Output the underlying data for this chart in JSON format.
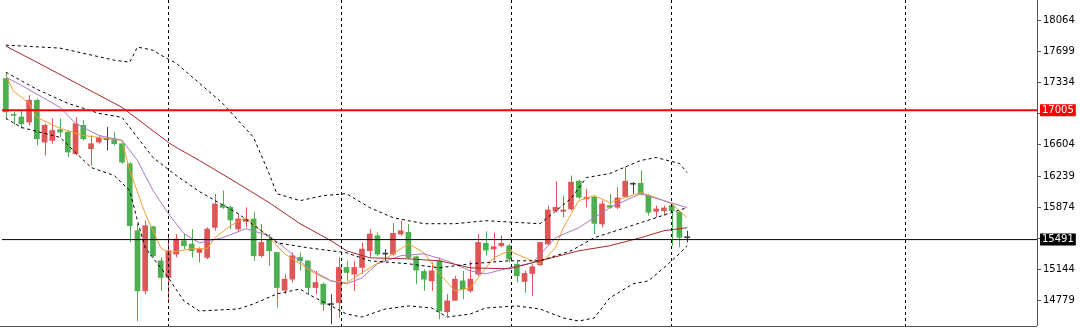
{
  "chart_data": {
    "type": "candlestick",
    "categories": [
      null,
      null,
      null,
      null,
      null,
      null,
      null,
      null,
      null,
      null,
      null,
      null,
      null,
      null,
      null,
      null,
      null,
      null,
      null,
      null,
      null,
      null,
      null,
      null,
      null,
      null,
      null,
      null,
      null,
      null,
      null,
      null,
      null,
      null,
      null,
      null,
      null,
      null,
      null,
      null,
      null,
      null,
      null,
      null,
      null,
      null,
      null,
      null,
      null,
      null,
      null,
      null,
      null,
      null,
      null,
      null,
      null,
      null,
      null,
      null,
      null,
      null,
      null,
      null,
      null,
      null,
      null,
      null,
      null,
      null,
      null,
      null,
      null,
      null,
      null,
      null,
      null,
      null,
      null,
      null,
      null,
      null,
      null,
      null,
      null,
      null,
      null,
      null,
      null
    ],
    "ohlc": [
      [
        17376,
        17435,
        16906,
        16985
      ],
      [
        16957,
        16985,
        16828,
        16945
      ],
      [
        16926,
        17004,
        16789,
        16848
      ],
      [
        16867,
        17180,
        16828,
        17122
      ],
      [
        17122,
        17141,
        16593,
        16671
      ],
      [
        16632,
        16848,
        16476,
        16828
      ],
      [
        16652,
        16906,
        16613,
        16769
      ],
      [
        16777,
        16906,
        16691,
        16750
      ],
      [
        16750,
        16769,
        16456,
        16515
      ],
      [
        16495,
        16926,
        16476,
        16848
      ],
      [
        16828,
        16887,
        16652,
        16671
      ],
      [
        16554,
        16711,
        16358,
        16613
      ],
      [
        16632,
        16711,
        16613,
        16683
      ],
      [
        16671,
        16808,
        16534,
        16664
      ],
      [
        16671,
        16750,
        16593,
        16613
      ],
      [
        16613,
        16652,
        16378,
        16397
      ],
      [
        16378,
        16397,
        15458,
        15654
      ],
      [
        15595,
        15674,
        14539,
        14891
      ],
      [
        14891,
        15713,
        14852,
        15654
      ],
      [
        15642,
        15654,
        15282,
        15302
      ],
      [
        15243,
        15282,
        14891,
        15048
      ],
      [
        15048,
        15556,
        14754,
        15361
      ],
      [
        15321,
        15556,
        15282,
        15498
      ],
      [
        15478,
        15564,
        15380,
        15419
      ],
      [
        15439,
        15615,
        15282,
        15361
      ],
      [
        15341,
        15400,
        15224,
        15380
      ],
      [
        15282,
        15634,
        15263,
        15615
      ],
      [
        15634,
        16026,
        15595,
        15908
      ],
      [
        15897,
        16065,
        15850,
        15869
      ],
      [
        15869,
        15889,
        15615,
        15721
      ],
      [
        15615,
        15791,
        15576,
        15732
      ],
      [
        15705,
        15869,
        15634,
        15732
      ],
      [
        15732,
        15811,
        15243,
        15302
      ],
      [
        15302,
        15674,
        15282,
        15458
      ],
      [
        15486,
        15556,
        15185,
        15361
      ],
      [
        15341,
        15341,
        14695,
        14930
      ],
      [
        14899,
        15087,
        14852,
        15028
      ],
      [
        15028,
        15341,
        14989,
        15302
      ],
      [
        15282,
        15341,
        15126,
        15243
      ],
      [
        15243,
        15243,
        14852,
        14930
      ],
      [
        14930,
        15126,
        14852,
        14989
      ],
      [
        14969,
        14989,
        14656,
        14735
      ],
      [
        14742,
        14852,
        14500,
        14731
      ],
      [
        14754,
        15282,
        14578,
        15165
      ],
      [
        15165,
        15243,
        15008,
        15106
      ],
      [
        15087,
        15243,
        14891,
        15165
      ],
      [
        15165,
        15458,
        15087,
        15380
      ],
      [
        15361,
        15615,
        15282,
        15556
      ],
      [
        15537,
        15576,
        15302,
        15321
      ],
      [
        15321,
        15380,
        15243,
        15333
      ],
      [
        15321,
        15685,
        15302,
        15564
      ],
      [
        15556,
        15713,
        15537,
        15595
      ],
      [
        15576,
        15674,
        15263,
        15282
      ],
      [
        15290,
        15302,
        14969,
        15134
      ],
      [
        15118,
        15145,
        14891,
        15028
      ],
      [
        15008,
        15224,
        14891,
        15126
      ],
      [
        15243,
        15282,
        14558,
        14656
      ],
      [
        14648,
        14852,
        14598,
        14774
      ],
      [
        14781,
        15067,
        14774,
        15028
      ],
      [
        15008,
        15126,
        14793,
        14911
      ],
      [
        14891,
        15243,
        14871,
        15028
      ],
      [
        15087,
        15556,
        15067,
        15458
      ],
      [
        15447,
        15588,
        15302,
        15368
      ],
      [
        15380,
        15576,
        15243,
        15408
      ],
      [
        15419,
        15537,
        15400,
        15447
      ],
      [
        15419,
        15439,
        15224,
        15263
      ],
      [
        15204,
        15243,
        14989,
        15067
      ],
      [
        15001,
        15126,
        14871,
        15095
      ],
      [
        15095,
        15204,
        14832,
        15173
      ],
      [
        15196,
        15458,
        15185,
        15458
      ],
      [
        15439,
        15889,
        15419,
        15838
      ],
      [
        15830,
        16175,
        15811,
        15869
      ],
      [
        15822,
        16006,
        15752,
        15838
      ],
      [
        15850,
        16241,
        15830,
        16163
      ],
      [
        16175,
        16190,
        15967,
        15987
      ],
      [
        15967,
        16085,
        15869,
        15987
      ],
      [
        15987,
        16006,
        15556,
        15681
      ],
      [
        15674,
        15948,
        15634,
        15908
      ],
      [
        15889,
        16026,
        15850,
        15869
      ],
      [
        15869,
        16104,
        15850,
        15979
      ],
      [
        15995,
        16347,
        15987,
        16175
      ],
      [
        16147,
        16163,
        16026,
        16139
      ],
      [
        16151,
        16300,
        16006,
        16026
      ],
      [
        16006,
        16026,
        15771,
        15811
      ],
      [
        15822,
        15889,
        15752,
        15850
      ],
      [
        15830,
        15889,
        15771,
        15861
      ],
      [
        15889,
        15908,
        15419,
        15830
      ],
      [
        15811,
        15830,
        15400,
        15517
      ],
      [
        15525,
        15595,
        15458,
        15513
      ]
    ],
    "colors": [
      "#4caf50",
      "#4caf50",
      "#4caf50",
      "#e05555",
      "#4caf50",
      "#e05555",
      "#e05555",
      "#4caf50",
      "#4caf50",
      "#e05555",
      "#4caf50",
      "#e05555",
      "#e05555",
      "#404040",
      "#4caf50",
      "#4caf50",
      "#4caf50",
      "#4caf50",
      "#e05555",
      "#4caf50",
      "#4caf50",
      "#e05555",
      "#e05555",
      "#4caf50",
      "#4caf50",
      "#e05555",
      "#e05555",
      "#e05555",
      "#4caf50",
      "#4caf50",
      "#e05555",
      "#e05555",
      "#4caf50",
      "#e05555",
      "#4caf50",
      "#4caf50",
      "#e05555",
      "#e05555",
      "#4caf50",
      "#4caf50",
      "#e05555",
      "#4caf50",
      "#404040",
      "#e05555",
      "#4caf50",
      "#e05555",
      "#e05555",
      "#e05555",
      "#4caf50",
      "#404040",
      "#e05555",
      "#e05555",
      "#4caf50",
      "#4caf50",
      "#4caf50",
      "#e05555",
      "#4caf50",
      "#e05555",
      "#e05555",
      "#4caf50",
      "#e05555",
      "#e05555",
      "#4caf50",
      "#e05555",
      "#e05555",
      "#4caf50",
      "#4caf50",
      "#e05555",
      "#e05555",
      "#e05555",
      "#e05555",
      "#e05555",
      "#e05555",
      "#e05555",
      "#4caf50",
      "#e05555",
      "#4caf50",
      "#e05555",
      "#4caf50",
      "#e05555",
      "#e05555",
      "#404040",
      "#4caf50",
      "#4caf50",
      "#e05555",
      "#e05555",
      "#4caf50",
      "#4caf50",
      "#404040"
    ],
    "series": [
      {
        "type": "line",
        "color": "#000000",
        "line_style": "dashed",
        "values": [
          17767,
          null,
          null,
          null,
          null,
          null,
          null,
          17732,
          null,
          null,
          null,
          null,
          null,
          null,
          17591,
          null,
          17567,
          17744,
          null,
          17708,
          17650,
          null,
          17556,
          null,
          null,
          null,
          null,
          null,
          17086,
          null,
          null,
          null,
          16687,
          null,
          16264,
          16029,
          null,
          null,
          15947,
          null,
          null,
          16006,
          null,
          null,
          16029,
          null,
          null,
          15865,
          null,
          null,
          15748,
          null,
          null,
          null,
          15677,
          null,
          null,
          null,
          15677,
          null,
          null,
          null,
          15712,
          null,
          null,
          null,
          null,
          null,
          null,
          15677,
          null,
          null,
          null,
          15971,
          null,
          16217,
          null,
          null,
          16264,
          null,
          null,
          null,
          16417,
          null,
          16452,
          null,
          null,
          16382,
          16276
        ]
      },
      {
        "type": "line",
        "color": "#000000",
        "line_style": "dashed",
        "values": [
          17450,
          null,
          null,
          null,
          17250,
          null,
          null,
          null,
          17086,
          null,
          null,
          null,
          16969,
          null,
          null,
          16922,
          null,
          16687,
          null,
          16452,
          null,
          null,
          16241,
          null,
          null,
          16053,
          null,
          null,
          null,
          null,
          15795,
          null,
          null,
          15595,
          null,
          15454,
          null,
          null,
          null,
          15396,
          null,
          null,
          null,
          null,
          15337,
          null,
          null,
          15243,
          null,
          null,
          null,
          null,
          15208,
          null,
          null,
          null,
          15161,
          null,
          null,
          null,
          15208,
          null,
          null,
          null,
          null,
          15243,
          null,
          null,
          null,
          15243,
          null,
          null,
          null,
          15360,
          null,
          null,
          15513,
          null,
          null,
          null,
          15630,
          null,
          null,
          null,
          15748,
          null,
          null,
          null,
          15865
        ]
      },
      {
        "type": "line",
        "color": "#000000",
        "line_style": "dashed",
        "values": [
          16910,
          null,
          16804,
          null,
          null,
          null,
          null,
          16687,
          null,
          null,
          null,
          16335,
          null,
          null,
          16241,
          null,
          16065,
          15712,
          15396,
          null,
          null,
          15043,
          null,
          14773,
          null,
          14656,
          null,
          null,
          null,
          null,
          14679,
          null,
          14738,
          null,
          null,
          14855,
          null,
          null,
          14914,
          14855,
          null,
          null,
          14715,
          null,
          14621,
          null,
          14585,
          null,
          null,
          14679,
          null,
          null,
          14715,
          null,
          null,
          14691,
          null,
          14585,
          null,
          null,
          14621,
          null,
          14691,
          null,
          null,
          null,
          14715,
          null,
          null,
          14679,
          null,
          null,
          14574,
          null,
          14538,
          null,
          14574,
          null,
          14808,
          null,
          null,
          14973,
          null,
          15008,
          null,
          15161,
          null,
          15325,
          15419
        ]
      },
      {
        "type": "line",
        "color": "#a52a2a",
        "line_style": "solid",
        "values": [
          17755,
          null,
          null,
          null,
          17567,
          null,
          null,
          null,
          null,
          null,
          null,
          null,
          null,
          null,
          null,
          17039,
          null,
          null,
          null,
          null,
          null,
          16628,
          16570,
          null,
          null,
          16417,
          null,
          null,
          null,
          null,
          16147,
          null,
          null,
          null,
          15924,
          null,
          null,
          null,
          15677,
          null,
          null,
          null,
          15478,
          null,
          15360,
          null,
          null,
          15278,
          null,
          null,
          null,
          null,
          15266,
          null,
          null,
          null,
          15243,
          null,
          null,
          null,
          15161,
          null,
          null,
          null,
          null,
          15149,
          null,
          null,
          null,
          15243,
          null,
          null,
          null,
          null,
          15360,
          null,
          null,
          null,
          15419,
          null,
          null,
          null,
          15513,
          null,
          null,
          15595,
          null,
          null,
          15630
        ]
      },
      {
        "type": "line",
        "color": "#a878c8",
        "line_style": "solid",
        "values": [
          17391,
          null,
          17297,
          null,
          null,
          null,
          null,
          17039,
          null,
          16851,
          null,
          null,
          16710,
          null,
          null,
          16652,
          null,
          16417,
          null,
          16065,
          null,
          15795,
          null,
          15560,
          null,
          15454,
          null,
          null,
          15513,
          null,
          null,
          15619,
          null,
          null,
          15536,
          null,
          15396,
          null,
          null,
          15161,
          null,
          null,
          15008,
          null,
          14973,
          null,
          15043,
          null,
          15208,
          null,
          null,
          15302,
          null,
          null,
          15325,
          null,
          null,
          15243,
          null,
          null,
          15125,
          null,
          15090,
          null,
          null,
          15161,
          null,
          null,
          15219,
          null,
          null,
          15513,
          null,
          null,
          15630,
          null,
          null,
          null,
          15865,
          null,
          null,
          null,
          16029,
          null,
          null,
          15947,
          null,
          null,
          15865
        ]
      },
      {
        "type": "line",
        "color": "#f0a030",
        "line_style": "solid",
        "values": [
          17415,
          17227,
          null,
          17086,
          16922,
          null,
          null,
          16793,
          null,
          null,
          16710,
          null,
          null,
          16675,
          null,
          16652,
          16299,
          null,
          15795,
          null,
          15396,
          15337,
          null,
          null,
          15384,
          null,
          15384,
          15513,
          null,
          15654,
          null,
          15748,
          null,
          15595,
          15513,
          null,
          15325,
          null,
          15208,
          null,
          15090,
          null,
          15008,
          null,
          14985,
          null,
          null,
          15161,
          null,
          15266,
          null,
          null,
          15442,
          null,
          15337,
          null,
          15090,
          null,
          14891,
          null,
          14926,
          15043,
          null,
          15278,
          null,
          15360,
          null,
          null,
          15243,
          15208,
          null,
          15396,
          15630,
          null,
          15947,
          null,
          16006,
          null,
          15924,
          null,
          15982,
          null,
          16041,
          null,
          15982,
          null,
          15912,
          null,
          15748
        ]
      }
    ],
    "ylim": [
      14480,
      18295
    ],
    "yticks": [
      14779,
      15144,
      {
        "value": 15509,
        "label": null
      },
      15874,
      16239,
      16604,
      {
        "value": 16969,
        "label": null
      },
      17334,
      17699,
      18064
    ],
    "tick_labels": "y",
    "legend": false,
    "ref_lines": [
      {
        "axis": "y",
        "value": 17005,
        "label": "17005",
        "color": "#ff0000"
      },
      {
        "axis": "y",
        "value": 15491,
        "label": "15491",
        "color": "#000000"
      }
    ]
  }
}
